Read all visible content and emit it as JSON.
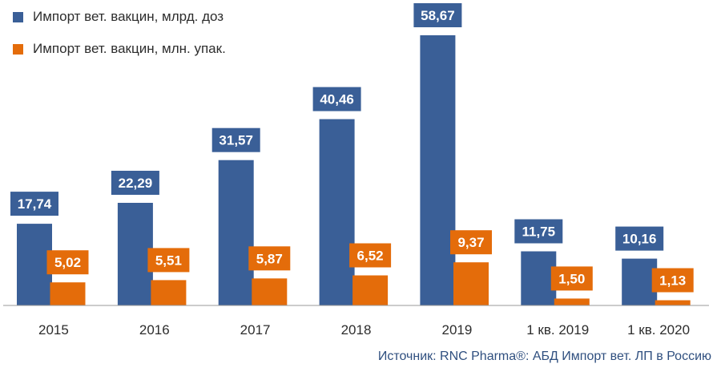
{
  "chart_data": {
    "type": "bar",
    "title": "",
    "xlabel": "",
    "ylabel": "",
    "ylim": [
      0,
      62
    ],
    "grid": false,
    "legend_position": "top-left",
    "categories": [
      "2015",
      "2016",
      "2017",
      "2018",
      "2019",
      "1 кв. 2019",
      "1 кв. 2020"
    ],
    "series": [
      {
        "name": "Импорт вет. вакцин, млрд. доз",
        "color": "#3a5f97",
        "values": [
          17.74,
          22.29,
          31.57,
          40.46,
          58.67,
          11.75,
          10.16
        ],
        "labels": [
          "17,74",
          "22,29",
          "31,57",
          "40,46",
          "58,67",
          "11,75",
          "10,16"
        ]
      },
      {
        "name": "Импорт вет. вакцин, млн. упак.",
        "color": "#e46c0a",
        "values": [
          5.02,
          5.51,
          5.87,
          6.52,
          9.37,
          1.5,
          1.13
        ],
        "labels": [
          "5,02",
          "5,51",
          "5,87",
          "6,52",
          "9,37",
          "1,50",
          "1,13"
        ]
      }
    ],
    "source": "Источник: RNC Pharma®: АБД Импорт вет. ЛП в Россию"
  }
}
